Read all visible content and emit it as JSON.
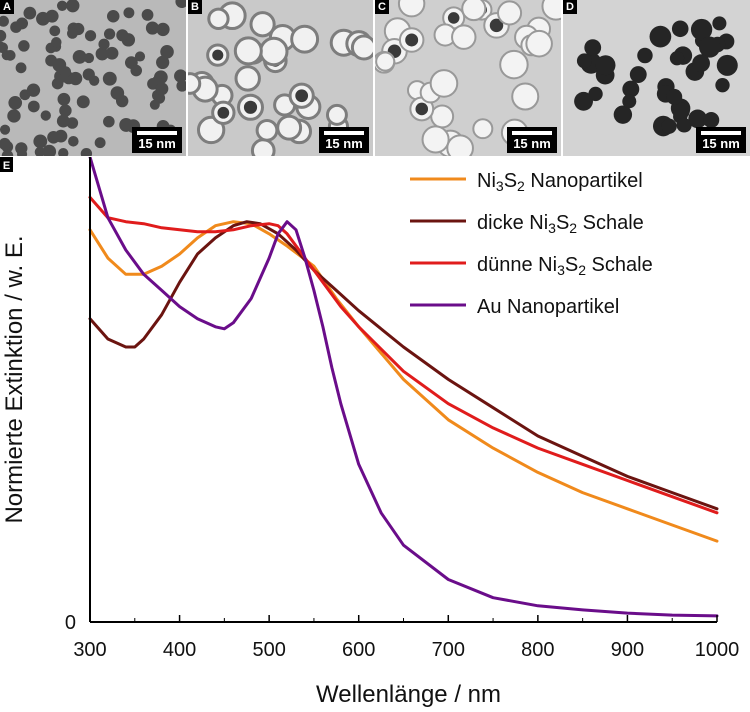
{
  "panels": [
    {
      "letter": "A",
      "scale": "15 nm",
      "bg": "#b9b9b9",
      "particle": "#4a4a4a",
      "style": "small"
    },
    {
      "letter": "B",
      "scale": "15 nm",
      "bg": "#c9c9c9",
      "particle": "#f1f1f1",
      "style": "shell"
    },
    {
      "letter": "C",
      "scale": "15 nm",
      "bg": "#cfcfcf",
      "particle": "#f3f3f3",
      "style": "thin"
    },
    {
      "letter": "D",
      "scale": "15 nm",
      "bg": "#d3d3d3",
      "particle": "#252525",
      "style": "dark"
    }
  ],
  "chart_panel_letter": "E",
  "chart_data": {
    "type": "line",
    "xlabel": "Wellenlänge / nm",
    "ylabel": "Normierte Extinktion / w. E.",
    "xlim": [
      300,
      1000
    ],
    "ylim": [
      0,
      1.15
    ],
    "xticks": [
      300,
      400,
      500,
      600,
      700,
      800,
      900,
      1000
    ],
    "yticks": [
      0
    ],
    "grid": false,
    "legend_position": "top-right",
    "series": [
      {
        "name": "Ni3S2 Nanopartikel",
        "label_parts": [
          "Ni",
          "3",
          "S",
          "2",
          " Nanopartikel"
        ],
        "color": "#f08a1c",
        "points": [
          [
            300,
            0.97
          ],
          [
            320,
            0.9
          ],
          [
            340,
            0.86
          ],
          [
            360,
            0.86
          ],
          [
            380,
            0.88
          ],
          [
            400,
            0.91
          ],
          [
            420,
            0.95
          ],
          [
            440,
            0.98
          ],
          [
            460,
            0.99
          ],
          [
            480,
            0.985
          ],
          [
            500,
            0.96
          ],
          [
            520,
            0.93
          ],
          [
            550,
            0.88
          ],
          [
            575,
            0.8
          ],
          [
            600,
            0.73
          ],
          [
            650,
            0.6
          ],
          [
            700,
            0.5
          ],
          [
            750,
            0.43
          ],
          [
            800,
            0.37
          ],
          [
            850,
            0.32
          ],
          [
            900,
            0.28
          ],
          [
            950,
            0.24
          ],
          [
            1000,
            0.2
          ]
        ]
      },
      {
        "name": "dicke Ni3S2 Schale",
        "label_parts": [
          "dicke Ni",
          "3",
          "S",
          "2",
          " Schale"
        ],
        "color": "#6b1410",
        "points": [
          [
            300,
            0.75
          ],
          [
            320,
            0.7
          ],
          [
            340,
            0.68
          ],
          [
            350,
            0.68
          ],
          [
            360,
            0.7
          ],
          [
            380,
            0.76
          ],
          [
            400,
            0.84
          ],
          [
            420,
            0.91
          ],
          [
            440,
            0.95
          ],
          [
            460,
            0.98
          ],
          [
            475,
            0.99
          ],
          [
            490,
            0.985
          ],
          [
            510,
            0.96
          ],
          [
            530,
            0.92
          ],
          [
            550,
            0.87
          ],
          [
            575,
            0.82
          ],
          [
            600,
            0.77
          ],
          [
            650,
            0.68
          ],
          [
            700,
            0.6
          ],
          [
            750,
            0.53
          ],
          [
            800,
            0.46
          ],
          [
            850,
            0.41
          ],
          [
            900,
            0.36
          ],
          [
            950,
            0.32
          ],
          [
            1000,
            0.28
          ]
        ]
      },
      {
        "name": "dünne Ni3S2 Schale",
        "label_parts": [
          "dünne Ni",
          "3",
          "S",
          "2",
          " Schale"
        ],
        "color": "#e01c1c",
        "points": [
          [
            300,
            1.05
          ],
          [
            320,
            1.0
          ],
          [
            340,
            0.99
          ],
          [
            360,
            0.985
          ],
          [
            380,
            0.975
          ],
          [
            400,
            0.97
          ],
          [
            420,
            0.965
          ],
          [
            440,
            0.965
          ],
          [
            460,
            0.97
          ],
          [
            480,
            0.98
          ],
          [
            500,
            0.985
          ],
          [
            510,
            0.98
          ],
          [
            520,
            0.96
          ],
          [
            540,
            0.9
          ],
          [
            560,
            0.84
          ],
          [
            580,
            0.78
          ],
          [
            600,
            0.73
          ],
          [
            650,
            0.62
          ],
          [
            700,
            0.54
          ],
          [
            750,
            0.48
          ],
          [
            800,
            0.43
          ],
          [
            850,
            0.39
          ],
          [
            900,
            0.35
          ],
          [
            950,
            0.31
          ],
          [
            1000,
            0.27
          ]
        ]
      },
      {
        "name": "Au Nanopartikel",
        "label_parts": [
          "Au Nanopartikel"
        ],
        "color": "#6a0d8a",
        "points": [
          [
            300,
            1.15
          ],
          [
            320,
            1.0
          ],
          [
            340,
            0.92
          ],
          [
            360,
            0.86
          ],
          [
            380,
            0.82
          ],
          [
            400,
            0.78
          ],
          [
            420,
            0.75
          ],
          [
            440,
            0.73
          ],
          [
            450,
            0.725
          ],
          [
            460,
            0.74
          ],
          [
            480,
            0.8
          ],
          [
            500,
            0.9
          ],
          [
            510,
            0.96
          ],
          [
            520,
            0.99
          ],
          [
            530,
            0.97
          ],
          [
            540,
            0.9
          ],
          [
            550,
            0.82
          ],
          [
            560,
            0.73
          ],
          [
            570,
            0.63
          ],
          [
            580,
            0.54
          ],
          [
            600,
            0.39
          ],
          [
            625,
            0.27
          ],
          [
            650,
            0.19
          ],
          [
            700,
            0.105
          ],
          [
            750,
            0.06
          ],
          [
            800,
            0.04
          ],
          [
            850,
            0.03
          ],
          [
            900,
            0.022
          ],
          [
            950,
            0.017
          ],
          [
            1000,
            0.015
          ]
        ]
      }
    ]
  }
}
